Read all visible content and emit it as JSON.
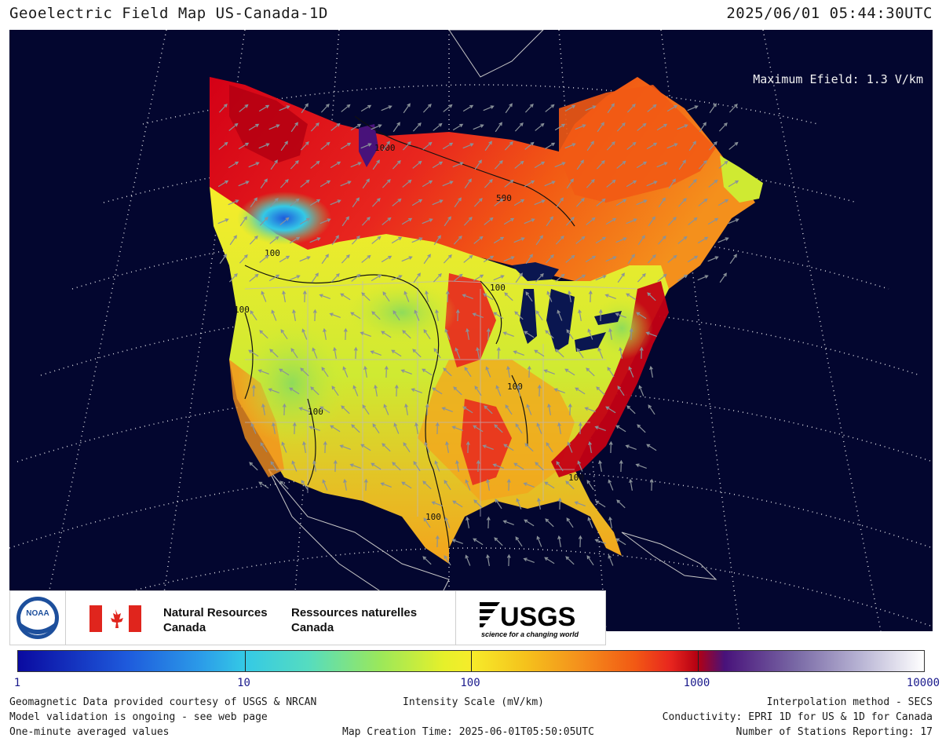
{
  "header": {
    "title": "Geoelectric Field Map US-Canada-1D",
    "timestamp": "2025/06/01 05:44:30UTC"
  },
  "map": {
    "max_efield": "Maximum Efield: 1.3 V/km",
    "contour_labels": [
      "1000",
      "500",
      "100",
      "100",
      "100",
      "100",
      "100",
      "100",
      "100"
    ],
    "colors": {
      "background": "#03062f",
      "land_outline": "#cfcfcf",
      "graticule": "#ffffff",
      "deep_red": "#b40012",
      "red": "#e8261e",
      "orange_red": "#f25a14",
      "orange": "#f4901c",
      "yellow_orange": "#f5c21c",
      "yellow": "#f6ec2a",
      "yellow_green": "#cfea32",
      "green": "#8fdc5a",
      "cyan": "#34c9e6",
      "blue": "#1e5adc",
      "purple": "#48127a",
      "lakes": "#0a1650"
    }
  },
  "logos": {
    "noaa": "NOAA",
    "nrcan_en": [
      "Natural Resources",
      "Canada"
    ],
    "nrcan_fr": [
      "Ressources naturelles",
      "Canada"
    ],
    "usgs": "USGS",
    "usgs_tagline": "science for a changing world"
  },
  "colorbar": {
    "scale_label": "Intensity Scale (mV/km)",
    "ticks": [
      "1",
      "10",
      "100",
      "1000",
      "10000"
    ],
    "scale": "log",
    "range": [
      1,
      10000
    ]
  },
  "footer": {
    "left": [
      "Geomagnetic Data provided courtesy of USGS & NRCAN",
      "Model validation is ongoing - see web page",
      "One-minute averaged values"
    ],
    "center_bottom": "Map Creation Time: 2025-06-01T05:50:05UTC",
    "right": [
      "Interpolation method - SECS",
      "Conductivity: EPRI 1D for US & 1D for Canada",
      "Number of Stations Reporting: 17"
    ]
  }
}
